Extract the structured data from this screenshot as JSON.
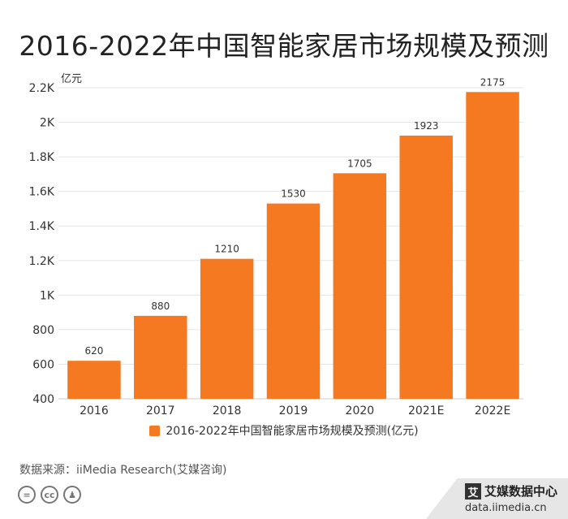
{
  "title": "2016-2022年中国智能家居市场规模及预测",
  "source": "数据来源：iiMedia Research(艾媒咨询)",
  "brand": {
    "logo_char": "艾",
    "name": "艾媒数据中心",
    "url": "data.iimedia.cn"
  },
  "icons": [
    "equal-icon",
    "cc-icon",
    "person-icon"
  ],
  "icon_text": {
    "equal": "=",
    "cc": "cc",
    "person": "♟"
  },
  "colors": {
    "bar": "#f47920",
    "grid": "#e5e5e5",
    "axis": "#cccccc",
    "text": "#333333"
  },
  "chart_data": {
    "type": "bar",
    "categories": [
      "2016",
      "2017",
      "2018",
      "2019",
      "2020",
      "2021E",
      "2022E"
    ],
    "series": [
      {
        "name": "2016-2022年中国智能家居市场规模及预测(亿元)",
        "values": [
          620,
          880,
          1210,
          1530,
          1705,
          1923,
          2175
        ]
      }
    ],
    "ylabel": "亿元",
    "ylim": [
      400,
      2200
    ],
    "yticks": [
      400,
      600,
      800,
      "1K",
      "1.2K",
      "1.4K",
      "1.6K",
      "1.8K",
      "2K",
      "2.2K"
    ],
    "ytick_values": [
      400,
      600,
      800,
      1000,
      1200,
      1400,
      1600,
      1800,
      2000,
      2200
    ],
    "grid": true,
    "legend_position": "bottom-center"
  }
}
